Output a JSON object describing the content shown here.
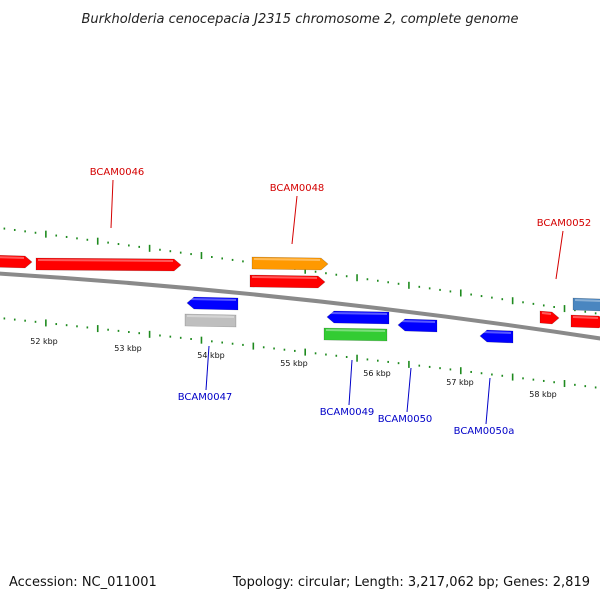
{
  "title": "Burkholderia cenocepacia J2315 chromosome 2, complete genome",
  "footer": {
    "accession": "Accession: NC_011001",
    "summary": "Topology: circular; Length: 3,217,062 bp; Genes: 2,819"
  },
  "colors": {
    "backbone": "#8a8a8a",
    "tick": "#1e8a1e",
    "label_top": "#d40000",
    "label_bottom": "#0000c8",
    "red": "#ff0000",
    "orange": "#ff9900",
    "blue": "#0000ff",
    "gray": "#bfbfbf",
    "green": "#33cc33",
    "steelblue": "#4a86c0"
  },
  "scale_labels": [
    "52 kbp",
    "53 kbp",
    "54 kbp",
    "55 kbp",
    "56 kbp",
    "57 kbp",
    "58 kbp"
  ],
  "gene_labels": {
    "top": [
      "BCAM0046",
      "BCAM0048",
      "BCAM0052"
    ],
    "bottom": [
      "BCAM0047",
      "BCAM0049",
      "BCAM0050",
      "BCAM0050a"
    ]
  },
  "features": [
    {
      "strand": "+",
      "lane": 1,
      "color": "red"
    },
    {
      "strand": "+",
      "lane": 1,
      "color": "red"
    },
    {
      "strand": "+",
      "lane": 2,
      "color": "orange"
    },
    {
      "strand": "+",
      "lane": 1,
      "color": "red"
    },
    {
      "strand": "+",
      "lane": 1,
      "color": "red"
    },
    {
      "strand": "+",
      "lane": 1,
      "color": "red"
    },
    {
      "strand": "+",
      "lane": 2,
      "color": "steelblue"
    },
    {
      "strand": "-",
      "lane": 1,
      "color": "blue"
    },
    {
      "strand": "-",
      "lane": 2,
      "color": "gray"
    },
    {
      "strand": "-",
      "lane": 1,
      "color": "blue"
    },
    {
      "strand": "-",
      "lane": 2,
      "color": "green"
    },
    {
      "strand": "-",
      "lane": 1,
      "color": "blue"
    },
    {
      "strand": "-",
      "lane": 1,
      "color": "blue"
    }
  ]
}
